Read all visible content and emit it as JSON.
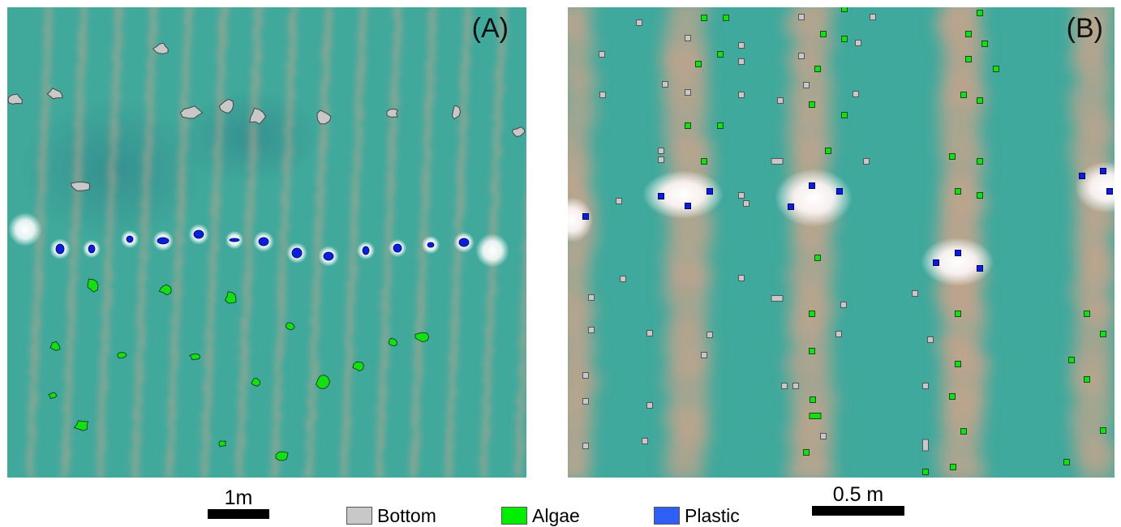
{
  "panels": {
    "a": {
      "label": "(A)"
    },
    "b": {
      "label": "(B)"
    }
  },
  "scalebars": {
    "a": {
      "label": "1m"
    },
    "b": {
      "label": "0.5 m"
    }
  },
  "legend": {
    "items": [
      {
        "label": "Bottom",
        "color": "#c8c8c8"
      },
      {
        "label": "Algae",
        "color": "#00ee00"
      },
      {
        "label": "Plastic",
        "color": "#2f5ff5"
      }
    ]
  },
  "colors": {
    "water": "#3fa89c",
    "stripe": "#c9a48c",
    "bottom": "#c8c8c8",
    "algae": "#12e012",
    "plastic": "#0a1fd8",
    "highlight": "#ffffff"
  }
}
